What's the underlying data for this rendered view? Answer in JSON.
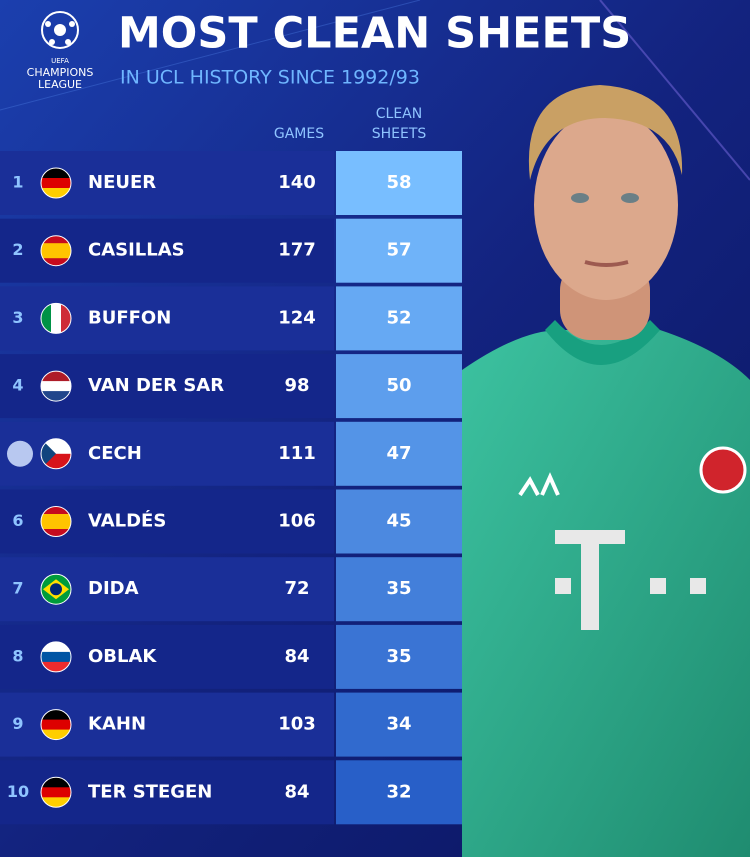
{
  "header": {
    "logo_top": "UEFA",
    "logo_line1": "CHAMPIONS",
    "logo_line2": "LEAGUE",
    "title": "MOST CLEAN SHEETS",
    "subtitle": "IN UCL HISTORY SINCE 1992/93"
  },
  "table": {
    "columns": [
      "GAMES",
      "CLEAN SHEETS"
    ],
    "rows": [
      [
        1,
        "NEUER",
        140,
        58
      ],
      [
        2,
        "CASILLAS",
        177,
        57
      ],
      [
        3,
        "BUFFON",
        124,
        52
      ],
      [
        4,
        "VAN DER SAR",
        98,
        50
      ],
      [
        null,
        "CECH",
        111,
        47
      ],
      [
        6,
        "VALDÉS",
        106,
        45
      ],
      [
        7,
        "DIDA",
        72,
        35
      ],
      [
        8,
        "OBLAK",
        84,
        35
      ],
      [
        9,
        "KAHN",
        103,
        34
      ],
      [
        10,
        "TER STEGEN",
        84,
        32
      ]
    ]
  }
}
